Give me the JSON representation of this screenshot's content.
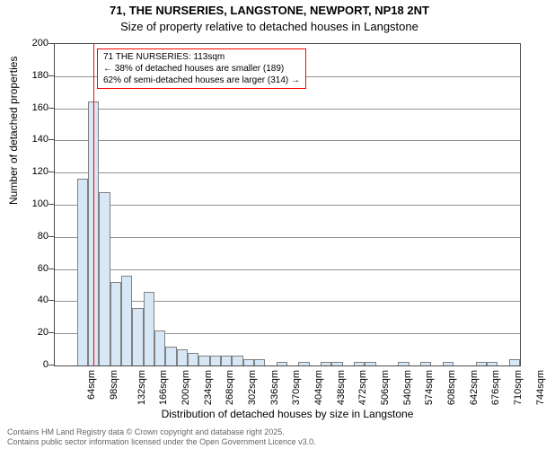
{
  "title": "71, THE NURSERIES, LANGSTONE, NEWPORT, NP18 2NT",
  "subtitle": "Size of property relative to detached houses in Langstone",
  "x_axis_title": "Distribution of detached houses by size in Langstone",
  "y_axis_title": "Number of detached properties",
  "chart": {
    "type": "histogram",
    "ylim": [
      0,
      200
    ],
    "ytick_step": 20,
    "background_color": "#ffffff",
    "grid_color": "#4a4a4a",
    "bar_fill": "#d8e7f5",
    "bar_stroke": "#808080",
    "marker_color": "#ff0000",
    "bin_width_sqm": 17,
    "bin_start_sqm": 54,
    "bin_count": 42,
    "values": [
      0,
      0,
      116,
      164,
      108,
      52,
      56,
      36,
      46,
      22,
      12,
      10,
      8,
      6,
      6,
      6,
      6,
      4,
      4,
      0,
      2,
      0,
      2,
      0,
      2,
      2,
      0,
      2,
      2,
      0,
      0,
      2,
      0,
      2,
      0,
      2,
      0,
      0,
      2,
      2,
      0,
      4
    ],
    "marker_at_sqm": 113
  },
  "x_labels": [
    "64sqm",
    "98sqm",
    "132sqm",
    "166sqm",
    "200sqm",
    "234sqm",
    "268sqm",
    "302sqm",
    "336sqm",
    "370sqm",
    "404sqm",
    "438sqm",
    "472sqm",
    "506sqm",
    "540sqm",
    "574sqm",
    "608sqm",
    "642sqm",
    "676sqm",
    "710sqm",
    "744sqm"
  ],
  "annotation": {
    "border_color": "#ff0000",
    "lines": [
      "71 THE NURSERIES: 113sqm",
      "← 38% of detached houses are smaller (189)",
      "62% of semi-detached houses are larger (314) →"
    ]
  },
  "footer": {
    "line1": "Contains HM Land Registry data © Crown copyright and database right 2025.",
    "line2": "Contains public sector information licensed under the Open Government Licence v3.0."
  }
}
